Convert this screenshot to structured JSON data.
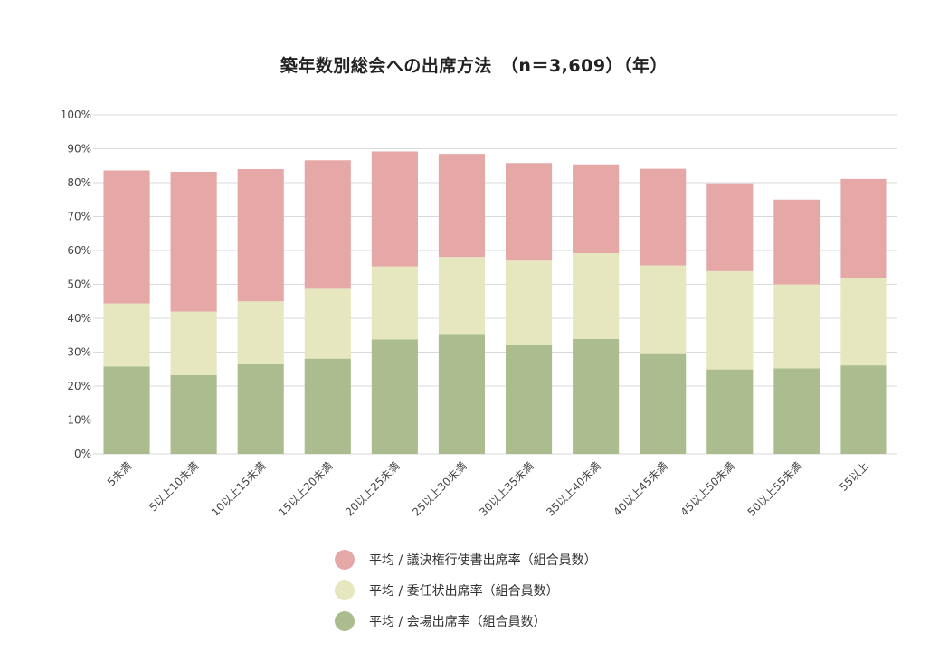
{
  "chart_data": {
    "type": "bar",
    "stacked": true,
    "title": "築年数別総会への出席方法　（n＝3,609）（年）",
    "categories": [
      "5未満",
      "5以上10未満",
      "10以上15未満",
      "15以上20未満",
      "20以上25未満",
      "25以上30未満",
      "30以上35未満",
      "35以上40未満",
      "40以上45未満",
      "45以上50未満",
      "50以上55未満",
      "55以上"
    ],
    "series": [
      {
        "name": "平均 / 会場出席率（組合員数）",
        "color": "#abbd8e",
        "values": [
          25.8,
          23.2,
          26.4,
          28.1,
          33.8,
          35.4,
          32.0,
          33.9,
          29.7,
          24.9,
          25.2,
          26.1
        ]
      },
      {
        "name": "平均 / 委任状出席率（組合員数）",
        "color": "#e6e6bf",
        "values": [
          18.6,
          18.8,
          18.6,
          20.6,
          21.5,
          22.7,
          25.0,
          25.3,
          25.9,
          29.0,
          24.8,
          25.9
        ]
      },
      {
        "name": "平均 / 議決権行使書出席率（組合員数）",
        "color": "#e6a7a7",
        "values": [
          39.2,
          41.2,
          39.0,
          37.9,
          33.9,
          30.4,
          28.8,
          26.2,
          28.5,
          25.9,
          25.0,
          29.1
        ]
      }
    ],
    "legend_order": [
      2,
      1,
      0
    ],
    "yticks": [
      "0%",
      "10%",
      "20%",
      "30%",
      "40%",
      "50%",
      "60%",
      "70%",
      "80%",
      "90%",
      "100%"
    ],
    "ylim": [
      0,
      100
    ],
    "grid": true,
    "legend_position": "bottom"
  }
}
